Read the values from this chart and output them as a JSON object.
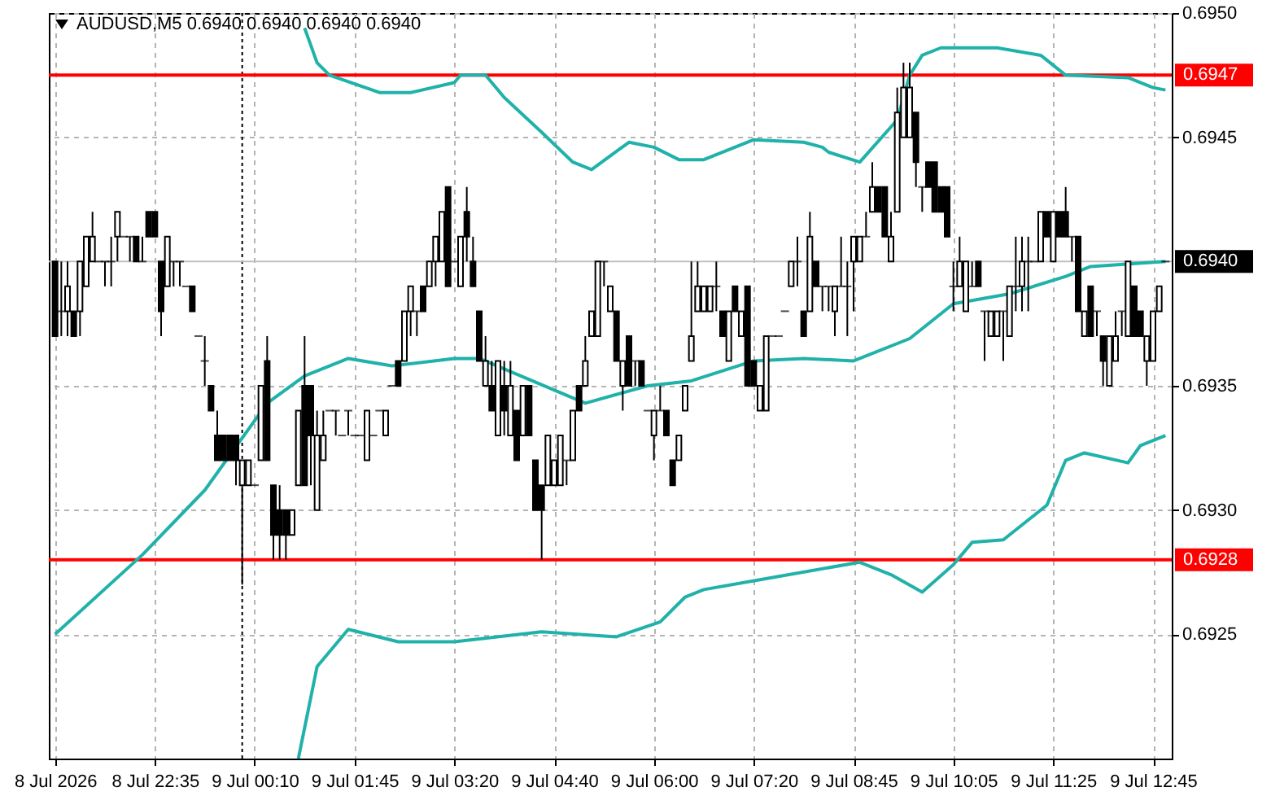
{
  "chart_data": {
    "type": "candlestick",
    "title": "AUDUSD,M5  0.6940 0.6940 0.6940 0.6940",
    "categories": [
      "8 Jul 2026",
      null,
      null,
      null,
      null,
      null,
      null,
      null,
      null,
      null,
      null,
      null,
      null,
      null,
      null,
      null,
      "8 Jul 22:35",
      null,
      null,
      null,
      null,
      null,
      null,
      null,
      null,
      null,
      null,
      null,
      null,
      null,
      null,
      null,
      "9 Jul 00:10",
      null,
      null,
      null,
      null,
      null,
      null,
      null,
      null,
      null,
      null,
      null,
      null,
      null,
      null,
      null,
      "9 Jul 01:45",
      null,
      null,
      null,
      null,
      null,
      null,
      null,
      null,
      null,
      null,
      null,
      null,
      null,
      null,
      null,
      "9 Jul 03:20",
      null,
      null,
      null,
      null,
      null,
      null,
      null,
      null,
      null,
      null,
      null,
      null,
      null,
      null,
      null,
      "9 Jul 04:40",
      null,
      null,
      null,
      null,
      null,
      null,
      null,
      null,
      null,
      null,
      null,
      null,
      null,
      null,
      null,
      "9 Jul 06:00",
      null,
      null,
      null,
      null,
      null,
      null,
      null,
      null,
      null,
      null,
      null,
      null,
      null,
      null,
      null,
      "9 Jul 07:20",
      null,
      null,
      null,
      null,
      null,
      null,
      null,
      null,
      null,
      null,
      null,
      null,
      null,
      null,
      null,
      "9 Jul 08:45",
      null,
      null,
      null,
      null,
      null,
      null,
      null,
      null,
      null,
      null,
      null,
      null,
      null,
      null,
      null,
      "9 Jul 10:05",
      null,
      null,
      null,
      null,
      null,
      null,
      null,
      null,
      null,
      null,
      null,
      null,
      null,
      null,
      null,
      "9 Jul 11:25",
      null,
      null,
      null,
      null,
      null,
      null,
      null,
      null,
      null,
      null,
      null,
      null,
      null,
      null,
      null,
      "9 Jul 12:45",
      null,
      null
    ],
    "ylim": [
      0.692,
      0.695
    ],
    "yticks": [
      {
        "value": 0.6925,
        "label": "0.6925"
      },
      {
        "value": 0.693,
        "label": "0.6930"
      },
      {
        "value": 0.6935,
        "label": "0.6935"
      },
      {
        "value": 0.6945,
        "label": "0.6945"
      },
      {
        "value": 0.695,
        "label": "0.6950"
      }
    ],
    "grid": true,
    "ref_lines": [
      {
        "axis": "y",
        "value": 0.694,
        "label": "0.6940",
        "color": "#c0c0c0"
      },
      {
        "axis": "y",
        "value": 0.69475,
        "label": "0.6947",
        "color": "#ff0000"
      },
      {
        "axis": "y",
        "value": 0.6928,
        "label": "0.6928",
        "color": "#ff0000"
      }
    ],
    "series": [
      {
        "type": "line",
        "color": "#20b2aa",
        "values": [
          null,
          null,
          null,
          null,
          null,
          null,
          null,
          null,
          null,
          null,
          null,
          null,
          null,
          null,
          null,
          null,
          null,
          null,
          null,
          null,
          null,
          null,
          null,
          null,
          null,
          null,
          null,
          null,
          null,
          null,
          null,
          null,
          null,
          null,
          null,
          null,
          null,
          null,
          null,
          null,
          0.69494,
          null,
          0.6948,
          null,
          0.69475,
          null,
          null,
          null,
          null,
          null,
          null,
          null,
          0.69468,
          null,
          null,
          null,
          null,
          0.69468,
          null,
          null,
          null,
          null,
          null,
          null,
          0.69472,
          0.69475,
          null,
          null,
          null,
          0.69475,
          null,
          null,
          0.69466,
          null,
          null,
          null,
          null,
          null,
          0.69452,
          null,
          null,
          null,
          null,
          0.6944,
          null,
          null,
          0.69437,
          null,
          null,
          null,
          null,
          null,
          0.69448,
          null,
          null,
          null,
          0.69446,
          null,
          null,
          null,
          0.69441,
          null,
          null,
          null,
          0.69441,
          null,
          null,
          null,
          null,
          null,
          null,
          null,
          0.69449,
          null,
          null,
          null,
          null,
          null,
          null,
          null,
          0.69448,
          null,
          null,
          0.69446,
          0.69444,
          null,
          null,
          null,
          null,
          0.6944,
          null,
          null,
          null,
          null,
          null,
          0.69457,
          null,
          0.69475,
          null,
          0.69483,
          null,
          null,
          0.69486,
          null,
          null,
          null,
          null,
          null,
          null,
          null,
          null,
          0.69486,
          null,
          null,
          null,
          null,
          null,
          null,
          0.69483,
          null,
          null,
          null,
          0.69475,
          null,
          null,
          null,
          null,
          null,
          null,
          null,
          null,
          null,
          0.69474,
          null,
          null,
          null,
          0.6947,
          null,
          0.69469
        ]
      },
      {
        "type": "line",
        "color": "#20b2aa",
        "values": [
          0.6925,
          null,
          null,
          null,
          null,
          null,
          null,
          null,
          null,
          null,
          null,
          null,
          null,
          null,
          0.69282,
          null,
          null,
          null,
          null,
          null,
          null,
          null,
          null,
          null,
          0.69308,
          null,
          null,
          null,
          null,
          null,
          null,
          null,
          null,
          null,
          0.69343,
          null,
          null,
          null,
          null,
          null,
          0.69354,
          null,
          null,
          null,
          null,
          null,
          null,
          0.69361,
          null,
          null,
          null,
          null,
          null,
          null,
          0.69358,
          null,
          null,
          null,
          null,
          null,
          null,
          null,
          null,
          null,
          0.69361,
          null,
          null,
          null,
          0.69361,
          null,
          null,
          null,
          null,
          null,
          null,
          null,
          null,
          null,
          null,
          null,
          null,
          null,
          null,
          null,
          null,
          0.69343,
          null,
          null,
          null,
          null,
          null,
          null,
          null,
          null,
          null,
          0.6935,
          null,
          null,
          null,
          null,
          null,
          null,
          0.69352,
          null,
          null,
          null,
          null,
          null,
          null,
          null,
          null,
          null,
          0.6936,
          null,
          null,
          null,
          null,
          null,
          null,
          null,
          0.69361,
          null,
          null,
          null,
          null,
          null,
          null,
          null,
          0.6936,
          null,
          null,
          null,
          null,
          null,
          null,
          null,
          null,
          0.69369,
          null,
          null,
          null,
          null,
          null,
          null,
          0.69383,
          null,
          null,
          null,
          null,
          null,
          null,
          null,
          null,
          0.69387,
          null,
          null,
          null,
          null,
          null,
          null,
          null,
          null,
          0.69394,
          null,
          null,
          null,
          0.69398,
          null,
          null,
          null,
          null,
          null,
          null,
          null,
          null,
          null,
          null,
          null,
          0.694
        ]
      },
      {
        "type": "line",
        "color": "#20b2aa",
        "values": [
          null,
          null,
          null,
          null,
          null,
          null,
          null,
          null,
          null,
          null,
          null,
          null,
          null,
          null,
          null,
          null,
          null,
          null,
          null,
          null,
          null,
          null,
          null,
          null,
          null,
          null,
          null,
          null,
          null,
          null,
          null,
          null,
          null,
          null,
          null,
          null,
          null,
          null,
          null,
          0.692,
          null,
          null,
          0.69237,
          null,
          null,
          null,
          null,
          0.69252,
          null,
          null,
          null,
          null,
          null,
          null,
          null,
          0.69247,
          null,
          null,
          null,
          null,
          null,
          null,
          null,
          null,
          0.69247,
          null,
          null,
          null,
          null,
          null,
          null,
          null,
          null,
          null,
          null,
          null,
          null,
          null,
          0.69251,
          null,
          null,
          null,
          null,
          null,
          null,
          null,
          null,
          null,
          null,
          null,
          0.69249,
          null,
          null,
          null,
          null,
          null,
          null,
          0.69255,
          null,
          null,
          null,
          0.69265,
          null,
          null,
          0.69268,
          null,
          null,
          null,
          null,
          null,
          null,
          null,
          null,
          0.69272,
          null,
          null,
          null,
          null,
          null,
          null,
          null,
          null,
          null,
          null,
          null,
          null,
          null,
          null,
          null,
          0.69279,
          null,
          null,
          null,
          null,
          0.69274,
          null,
          null,
          null,
          null,
          0.69267,
          null,
          null,
          null,
          null,
          0.69278,
          null,
          null,
          0.69287,
          null,
          null,
          null,
          null,
          0.69288,
          null,
          null,
          null,
          null,
          null,
          null,
          0.69302,
          null,
          null,
          0.6932,
          null,
          null,
          0.69323,
          null,
          null,
          null,
          null,
          null,
          null,
          0.69319,
          null,
          0.69326,
          null,
          null,
          null,
          0.6933
        ]
      },
      {
        "color": "#000000",
        "ohlc": [
          [
            0.694,
            0.694,
            0.6937,
            0.6937
          ],
          [
            0.6938,
            0.694,
            0.6937,
            0.6938
          ],
          [
            0.6938,
            0.694,
            0.6937,
            0.6939
          ],
          [
            0.6938,
            0.6938,
            0.6937,
            0.6937
          ],
          [
            0.6938,
            0.694,
            0.6937,
            0.694
          ],
          [
            0.6939,
            0.6941,
            0.6939,
            0.6941
          ],
          [
            0.694,
            0.6942,
            0.694,
            0.6941
          ],
          [
            0.694,
            0.694,
            0.694,
            0.694
          ],
          [
            0.694,
            0.694,
            0.6939,
            0.694
          ],
          [
            0.694,
            0.6941,
            0.6939,
            0.694
          ],
          [
            0.6941,
            0.6942,
            0.694,
            0.6942
          ],
          [
            0.6941,
            0.6941,
            0.6941,
            0.6941
          ],
          [
            0.6941,
            0.6941,
            0.694,
            0.6941
          ],
          [
            0.6941,
            0.6941,
            0.694,
            0.694
          ],
          [
            0.694,
            0.6941,
            0.694,
            0.694
          ],
          [
            0.6942,
            0.6942,
            0.6941,
            0.6941
          ],
          [
            0.6942,
            0.6942,
            0.6941,
            0.6941
          ],
          [
            0.694,
            0.694,
            0.6937,
            0.6938
          ],
          [
            0.6939,
            0.6941,
            0.6939,
            0.6941
          ],
          [
            0.694,
            0.694,
            0.6939,
            0.694
          ],
          [
            0.694,
            0.694,
            0.6939,
            0.694
          ],
          [
            0.6939,
            0.6939,
            0.6939,
            0.6939
          ],
          [
            0.6939,
            0.6939,
            0.6938,
            0.6938
          ],
          [
            0.6937,
            0.6937,
            0.6937,
            0.6937
          ],
          [
            0.6936,
            0.6937,
            0.6935,
            0.6936
          ],
          [
            0.6935,
            0.6935,
            0.6934,
            0.6934
          ],
          [
            0.6933,
            0.6934,
            0.6932,
            0.6932
          ],
          [
            0.6933,
            0.6933,
            0.6932,
            0.6932
          ],
          [
            0.6933,
            0.6933,
            0.6932,
            0.6932
          ],
          [
            0.6933,
            0.6933,
            0.6931,
            0.6932
          ],
          [
            0.6931,
            0.6932,
            0.6927,
            0.6932
          ],
          [
            0.6931,
            0.6932,
            0.6931,
            0.6932
          ],
          [
            0.6931,
            0.6931,
            0.6931,
            0.6931
          ],
          [
            0.6932,
            0.6935,
            0.6932,
            0.6935
          ],
          [
            0.6936,
            0.6937,
            0.6932,
            0.6932
          ],
          [
            0.6931,
            0.6931,
            0.6928,
            0.6929
          ],
          [
            0.693,
            0.6931,
            0.6928,
            0.6929
          ],
          [
            0.693,
            0.693,
            0.6928,
            0.6929
          ],
          [
            0.6929,
            0.693,
            0.6929,
            0.693
          ],
          [
            0.6931,
            0.6934,
            0.6931,
            0.6934
          ],
          [
            0.6935,
            0.6937,
            0.6931,
            0.6931
          ],
          [
            0.6935,
            0.6935,
            0.6931,
            0.6933
          ],
          [
            0.693,
            0.6934,
            0.693,
            0.6933
          ],
          [
            0.6932,
            0.6934,
            0.6932,
            0.6933
          ],
          [
            0.6934,
            0.6934,
            0.6934,
            0.6934
          ],
          [
            0.6934,
            0.6934,
            0.6933,
            0.6934
          ],
          [
            0.6933,
            0.6933,
            0.6933,
            0.6933
          ],
          [
            0.6934,
            0.6934,
            0.6933,
            0.6934
          ],
          [
            0.6933,
            0.6933,
            0.6933,
            0.6933
          ],
          [
            0.6933,
            0.6933,
            0.6933,
            0.6933
          ],
          [
            0.6932,
            0.6934,
            0.6932,
            0.6934
          ],
          [
            0.6933,
            0.6933,
            0.6933,
            0.6933
          ],
          [
            0.6934,
            0.6934,
            0.6934,
            0.6934
          ],
          [
            0.6933,
            0.6934,
            0.6933,
            0.6934
          ],
          [
            0.6935,
            0.6935,
            0.6935,
            0.6935
          ],
          [
            0.6936,
            0.6936,
            0.6935,
            0.6935
          ],
          [
            0.6936,
            0.6938,
            0.6936,
            0.6938
          ],
          [
            0.6938,
            0.6939,
            0.6937,
            0.6939
          ],
          [
            0.6938,
            0.6938,
            0.6937,
            0.6938
          ],
          [
            0.6939,
            0.6939,
            0.6938,
            0.6938
          ],
          [
            0.6939,
            0.694,
            0.6939,
            0.694
          ],
          [
            0.694,
            0.6941,
            0.6939,
            0.6941
          ],
          [
            0.694,
            0.6942,
            0.694,
            0.6942
          ],
          [
            0.6943,
            0.6943,
            0.6939,
            0.6939
          ],
          [
            0.694,
            0.694,
            0.694,
            0.694
          ],
          [
            0.6939,
            0.6941,
            0.6939,
            0.6941
          ],
          [
            0.6942,
            0.6943,
            0.694,
            0.6941
          ],
          [
            0.694,
            0.6941,
            0.6939,
            0.6939
          ],
          [
            0.6938,
            0.6938,
            0.6936,
            0.6936
          ],
          [
            0.6935,
            0.6937,
            0.6935,
            0.6936
          ],
          [
            0.6935,
            0.6936,
            0.6934,
            0.6934
          ],
          [
            0.6933,
            0.6936,
            0.6933,
            0.6936
          ],
          [
            0.6935,
            0.6936,
            0.6933,
            0.6934
          ],
          [
            0.6933,
            0.6936,
            0.6933,
            0.6935
          ],
          [
            0.6934,
            0.6934,
            0.6932,
            0.6932
          ],
          [
            0.6933,
            0.6935,
            0.6933,
            0.6935
          ],
          [
            0.6935,
            0.6935,
            0.6933,
            0.6933
          ],
          [
            0.6932,
            0.6932,
            0.693,
            0.693
          ],
          [
            0.6931,
            0.6931,
            0.6928,
            0.693
          ],
          [
            0.6931,
            0.6933,
            0.6931,
            0.6933
          ],
          [
            0.6931,
            0.6932,
            0.6931,
            0.6932
          ],
          [
            0.6931,
            0.6933,
            0.6931,
            0.6933
          ],
          [
            0.6932,
            0.6932,
            0.6931,
            0.6932
          ],
          [
            0.6932,
            0.6934,
            0.6932,
            0.6934
          ],
          [
            0.6935,
            0.6935,
            0.6934,
            0.6934
          ],
          [
            0.6935,
            0.6937,
            0.6935,
            0.6936
          ],
          [
            0.6937,
            0.6938,
            0.6937,
            0.6938
          ],
          [
            0.6937,
            0.694,
            0.6937,
            0.694
          ],
          [
            0.694,
            0.694,
            0.6939,
            0.694
          ],
          [
            0.6938,
            0.6939,
            0.6938,
            0.6939
          ],
          [
            0.6938,
            0.6938,
            0.6936,
            0.6936
          ],
          [
            0.6935,
            0.6936,
            0.6934,
            0.6936
          ],
          [
            0.6937,
            0.6937,
            0.6935,
            0.6935
          ],
          [
            0.6936,
            0.6936,
            0.6935,
            0.6936
          ],
          [
            0.6936,
            0.6936,
            0.6935,
            0.6935
          ],
          [
            0.6934,
            0.6934,
            0.6934,
            0.6934
          ],
          [
            0.6933,
            0.6934,
            0.6932,
            0.6934
          ],
          [
            0.6934,
            0.6935,
            0.6934,
            0.6934
          ],
          [
            0.6934,
            0.6934,
            0.6933,
            0.6933
          ],
          [
            0.6932,
            0.6932,
            0.6931,
            0.6931
          ],
          [
            0.6932,
            0.6933,
            0.6932,
            0.6933
          ],
          [
            0.6934,
            0.6935,
            0.6934,
            0.6935
          ],
          [
            0.6936,
            0.694,
            0.6936,
            0.6937
          ],
          [
            0.6938,
            0.694,
            0.6938,
            0.6939
          ],
          [
            0.6938,
            0.6939,
            0.6938,
            0.6939
          ],
          [
            0.6938,
            0.6939,
            0.6938,
            0.6939
          ],
          [
            0.6939,
            0.694,
            0.6938,
            0.6939
          ],
          [
            0.6938,
            0.6938,
            0.6937,
            0.6937
          ],
          [
            0.6936,
            0.6938,
            0.6936,
            0.6938
          ],
          [
            0.6939,
            0.6939,
            0.6938,
            0.6938
          ],
          [
            0.6937,
            0.6938,
            0.6937,
            0.6938
          ],
          [
            0.6939,
            0.6939,
            0.6935,
            0.6935
          ],
          [
            0.6936,
            0.6936,
            0.6935,
            0.6935
          ],
          [
            0.6934,
            0.6935,
            0.6934,
            0.6935
          ],
          [
            0.6934,
            0.6937,
            0.6934,
            0.6937
          ],
          [
            0.6937,
            0.6937,
            0.6937,
            0.6937
          ],
          [
            0.6937,
            0.6937,
            0.6937,
            0.6937
          ],
          [
            0.6938,
            0.6938,
            0.6938,
            0.6938
          ],
          [
            0.6939,
            0.694,
            0.6939,
            0.694
          ],
          [
            0.694,
            0.6941,
            0.6939,
            0.694
          ],
          [
            0.6938,
            0.6938,
            0.6937,
            0.6937
          ],
          [
            0.6938,
            0.6942,
            0.6938,
            0.6941
          ],
          [
            0.694,
            0.694,
            0.6939,
            0.6939
          ],
          [
            0.6939,
            0.6939,
            0.6938,
            0.6939
          ],
          [
            0.6939,
            0.6939,
            0.6938,
            0.6939
          ],
          [
            0.6938,
            0.6939,
            0.6937,
            0.6939
          ],
          [
            0.6939,
            0.6941,
            0.6939,
            0.6939
          ],
          [
            0.6939,
            0.694,
            0.6937,
            0.6939
          ],
          [
            0.694,
            0.6941,
            0.6938,
            0.6941
          ],
          [
            0.694,
            0.6941,
            0.694,
            0.6941
          ],
          [
            0.6941,
            0.6942,
            0.6941,
            0.6941
          ],
          [
            0.6942,
            0.6944,
            0.6942,
            0.6943
          ],
          [
            0.6943,
            0.6943,
            0.6942,
            0.6942
          ],
          [
            0.6943,
            0.6943,
            0.6941,
            0.6941
          ],
          [
            0.694,
            0.6942,
            0.694,
            0.6941
          ],
          [
            0.6942,
            0.6947,
            0.6942,
            0.6946
          ],
          [
            0.6945,
            0.6948,
            0.6945,
            0.6947
          ],
          [
            0.6945,
            0.6948,
            0.6945,
            0.6947
          ],
          [
            0.6946,
            0.6946,
            0.6943,
            0.6944
          ],
          [
            0.6943,
            0.6943,
            0.6942,
            0.6943
          ],
          [
            0.6944,
            0.6944,
            0.6943,
            0.6943
          ],
          [
            0.6944,
            0.6944,
            0.6942,
            0.6942
          ],
          [
            0.6943,
            0.6943,
            0.6942,
            0.6942
          ],
          [
            0.6943,
            0.6943,
            0.6941,
            0.6941
          ],
          [
            0.6939,
            0.694,
            0.6938,
            0.6939
          ],
          [
            0.6939,
            0.6941,
            0.6939,
            0.694
          ],
          [
            0.6938,
            0.694,
            0.6938,
            0.694
          ],
          [
            0.6939,
            0.694,
            0.6939,
            0.6939
          ],
          [
            0.694,
            0.694,
            0.6939,
            0.6939
          ],
          [
            0.6938,
            0.6938,
            0.6936,
            0.6938
          ],
          [
            0.6937,
            0.6938,
            0.6937,
            0.6938
          ],
          [
            0.6937,
            0.6938,
            0.6937,
            0.6938
          ],
          [
            0.6938,
            0.6938,
            0.6936,
            0.6938
          ],
          [
            0.6937,
            0.6939,
            0.6937,
            0.6939
          ],
          [
            0.6939,
            0.6941,
            0.6938,
            0.6939
          ],
          [
            0.6939,
            0.6941,
            0.6938,
            0.694
          ],
          [
            0.694,
            0.6941,
            0.6938,
            0.694
          ],
          [
            0.694,
            0.694,
            0.694,
            0.694
          ],
          [
            0.694,
            0.6942,
            0.694,
            0.6942
          ],
          [
            0.6942,
            0.6942,
            0.6941,
            0.6941
          ],
          [
            0.694,
            0.6942,
            0.694,
            0.6942
          ],
          [
            0.6942,
            0.6942,
            0.6941,
            0.6941
          ],
          [
            0.6942,
            0.6943,
            0.6941,
            0.6941
          ],
          [
            0.6941,
            0.6941,
            0.694,
            0.6941
          ],
          [
            0.6941,
            0.6941,
            0.6938,
            0.6938
          ],
          [
            0.6937,
            0.6938,
            0.6937,
            0.6938
          ],
          [
            0.6939,
            0.6939,
            0.6937,
            0.6937
          ],
          [
            0.6938,
            0.6938,
            0.6937,
            0.6938
          ],
          [
            0.6937,
            0.6937,
            0.6935,
            0.6936
          ],
          [
            0.6935,
            0.6937,
            0.6935,
            0.6937
          ],
          [
            0.6936,
            0.6938,
            0.6936,
            0.6937
          ],
          [
            0.6938,
            0.6938,
            0.6937,
            0.6938
          ],
          [
            0.6937,
            0.694,
            0.6937,
            0.694
          ],
          [
            0.6939,
            0.6939,
            0.6937,
            0.6937
          ],
          [
            0.6938,
            0.6938,
            0.6937,
            0.6937
          ],
          [
            0.6936,
            0.6937,
            0.6935,
            0.6937
          ],
          [
            0.6936,
            0.6938,
            0.6936,
            0.6938
          ],
          [
            0.6938,
            0.6939,
            0.6938,
            0.6939
          ],
          [
            0.694,
            0.694,
            0.694,
            0.694
          ]
        ]
      }
    ]
  }
}
